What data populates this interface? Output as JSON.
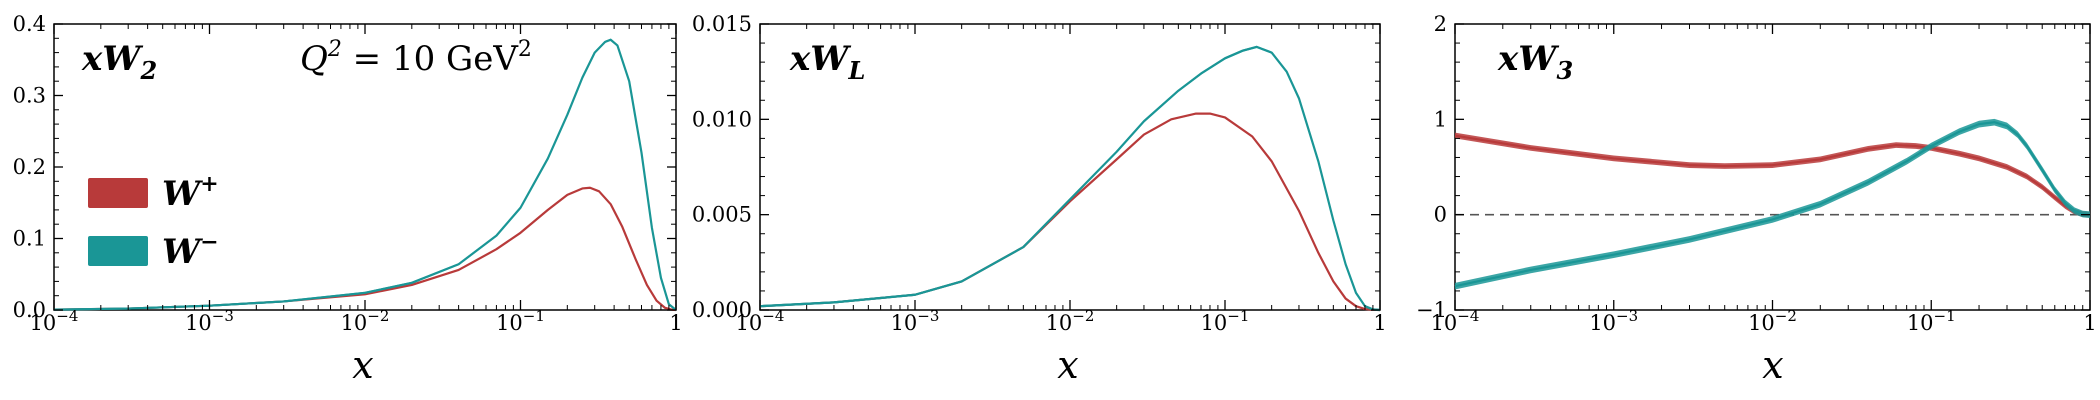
{
  "figure": {
    "annotation": {
      "main": "Q",
      "sup": "2",
      "rest": " = 10 GeV",
      "unit_sup": "2"
    }
  },
  "colors": {
    "W_plus": "#b83a3a",
    "W_minus": "#1a9696",
    "zero_line": "#555555"
  },
  "legend": {
    "location": "center-left of first panel",
    "entries": [
      {
        "base": "W",
        "sup": "+",
        "color": "#b83a3a"
      },
      {
        "base": "W",
        "sup": "−",
        "color": "#1a9696"
      }
    ]
  },
  "chart_data": [
    {
      "type": "area",
      "title": {
        "prefix": "xW",
        "sub": "2"
      },
      "xlabel": "x",
      "xscale": "log",
      "xlim": [
        0.0001,
        1
      ],
      "ylim": [
        0,
        0.4
      ],
      "yticks": [
        "0.0",
        "0.1",
        "0.2",
        "0.3",
        "0.4"
      ],
      "ytick_values": [
        0,
        0.1,
        0.2,
        0.3,
        0.4
      ],
      "xticks": [
        {
          "base": "10",
          "exp": "−4",
          "value": 0.0001
        },
        {
          "base": "10",
          "exp": "−3",
          "value": 0.001
        },
        {
          "base": "10",
          "exp": "−2",
          "value": 0.01
        },
        {
          "base": "10",
          "exp": "−1",
          "value": 0.1
        },
        {
          "base": "1",
          "exp": "",
          "value": 1
        }
      ],
      "series": [
        {
          "name": "W+",
          "color": "#b83a3a",
          "band_width": 0.002,
          "x": [
            0.0001,
            0.0003,
            0.001,
            0.003,
            0.01,
            0.02,
            0.04,
            0.07,
            0.1,
            0.15,
            0.2,
            0.25,
            0.28,
            0.32,
            0.38,
            0.45,
            0.55,
            0.65,
            0.75,
            0.85,
            0.95,
            1
          ],
          "y": [
            0.0005,
            0.002,
            0.006,
            0.012,
            0.022,
            0.035,
            0.056,
            0.085,
            0.108,
            0.14,
            0.161,
            0.17,
            0.171,
            0.166,
            0.148,
            0.117,
            0.071,
            0.035,
            0.013,
            0.003,
            0.0003,
            0
          ]
        },
        {
          "name": "W-",
          "color": "#1a9696",
          "band_width": 0.003,
          "x": [
            0.0001,
            0.0003,
            0.001,
            0.003,
            0.01,
            0.02,
            0.04,
            0.07,
            0.1,
            0.15,
            0.2,
            0.25,
            0.3,
            0.35,
            0.38,
            0.42,
            0.5,
            0.6,
            0.7,
            0.8,
            0.9,
            1
          ],
          "y": [
            0.0005,
            0.002,
            0.006,
            0.012,
            0.024,
            0.038,
            0.064,
            0.104,
            0.143,
            0.212,
            0.273,
            0.325,
            0.36,
            0.375,
            0.378,
            0.37,
            0.32,
            0.22,
            0.115,
            0.045,
            0.008,
            0
          ]
        }
      ]
    },
    {
      "type": "area",
      "title": {
        "prefix": "xW",
        "sub": "L"
      },
      "xlabel": "x",
      "xscale": "log",
      "xlim": [
        0.0001,
        1
      ],
      "ylim": [
        0,
        0.015
      ],
      "yticks": [
        "0.000",
        "0.005",
        "0.010",
        "0.015"
      ],
      "ytick_values": [
        0,
        0.005,
        0.01,
        0.015
      ],
      "xticks": [
        {
          "base": "10",
          "exp": "−4",
          "value": 0.0001
        },
        {
          "base": "10",
          "exp": "−3",
          "value": 0.001
        },
        {
          "base": "10",
          "exp": "−2",
          "value": 0.01
        },
        {
          "base": "10",
          "exp": "−1",
          "value": 0.1
        },
        {
          "base": "1",
          "exp": "",
          "value": 1
        }
      ],
      "series": [
        {
          "name": "W+",
          "color": "#b83a3a",
          "band_width": 8e-05,
          "x": [
            0.0001,
            0.0003,
            0.001,
            0.002,
            0.005,
            0.01,
            0.02,
            0.03,
            0.045,
            0.065,
            0.08,
            0.1,
            0.15,
            0.2,
            0.3,
            0.4,
            0.5,
            0.6,
            0.7,
            0.8,
            0.9,
            1
          ],
          "y": [
            0.0002,
            0.0004,
            0.0008,
            0.0015,
            0.0033,
            0.0057,
            0.0079,
            0.0092,
            0.01,
            0.0103,
            0.0103,
            0.0101,
            0.0091,
            0.0078,
            0.0052,
            0.003,
            0.0015,
            0.0006,
            0.0002,
            5e-05,
            1e-05,
            0
          ]
        },
        {
          "name": "W-",
          "color": "#1a9696",
          "band_width": 0.00012,
          "x": [
            0.0001,
            0.0003,
            0.001,
            0.002,
            0.005,
            0.01,
            0.02,
            0.03,
            0.05,
            0.07,
            0.1,
            0.13,
            0.16,
            0.2,
            0.25,
            0.3,
            0.4,
            0.5,
            0.6,
            0.7,
            0.8,
            0.9,
            1
          ],
          "y": [
            0.0002,
            0.0004,
            0.0008,
            0.0015,
            0.0033,
            0.0058,
            0.0083,
            0.0099,
            0.0115,
            0.0124,
            0.0132,
            0.0136,
            0.0138,
            0.0135,
            0.0125,
            0.0111,
            0.0078,
            0.0047,
            0.0024,
            0.0009,
            0.0002,
            3e-05,
            0
          ]
        }
      ]
    },
    {
      "type": "area",
      "title": {
        "prefix": "xW",
        "sub": "3"
      },
      "xlabel": "x",
      "xscale": "log",
      "xlim": [
        0.0001,
        1
      ],
      "ylim": [
        -1,
        2
      ],
      "yticks": [
        "−1",
        "0",
        "1",
        "2"
      ],
      "ytick_values": [
        -1,
        0,
        1,
        2
      ],
      "zero_line": "dashed",
      "xticks": [
        {
          "base": "10",
          "exp": "−4",
          "value": 0.0001
        },
        {
          "base": "10",
          "exp": "−3",
          "value": 0.001
        },
        {
          "base": "10",
          "exp": "−2",
          "value": 0.01
        },
        {
          "base": "10",
          "exp": "−1",
          "value": 0.1
        },
        {
          "base": "1",
          "exp": "",
          "value": 1
        }
      ],
      "series": [
        {
          "name": "W+",
          "color": "#b83a3a",
          "band_width": 0.06,
          "x": [
            0.0001,
            0.0003,
            0.001,
            0.003,
            0.005,
            0.01,
            0.02,
            0.04,
            0.06,
            0.08,
            0.1,
            0.15,
            0.2,
            0.3,
            0.4,
            0.5,
            0.6,
            0.7,
            0.8,
            0.9,
            1
          ],
          "y": [
            0.83,
            0.7,
            0.59,
            0.52,
            0.51,
            0.52,
            0.58,
            0.69,
            0.73,
            0.72,
            0.7,
            0.64,
            0.59,
            0.5,
            0.4,
            0.29,
            0.18,
            0.09,
            0.03,
            0.005,
            0
          ]
        },
        {
          "name": "W-",
          "color": "#1a9696",
          "band_width": 0.07,
          "x": [
            0.0001,
            0.0003,
            0.001,
            0.003,
            0.01,
            0.02,
            0.04,
            0.07,
            0.1,
            0.15,
            0.2,
            0.25,
            0.3,
            0.35,
            0.4,
            0.5,
            0.6,
            0.7,
            0.8,
            0.9,
            1
          ],
          "y": [
            -0.75,
            -0.58,
            -0.42,
            -0.26,
            -0.05,
            0.11,
            0.34,
            0.56,
            0.72,
            0.87,
            0.95,
            0.97,
            0.93,
            0.84,
            0.72,
            0.47,
            0.26,
            0.12,
            0.04,
            0.006,
            0
          ]
        }
      ]
    }
  ]
}
